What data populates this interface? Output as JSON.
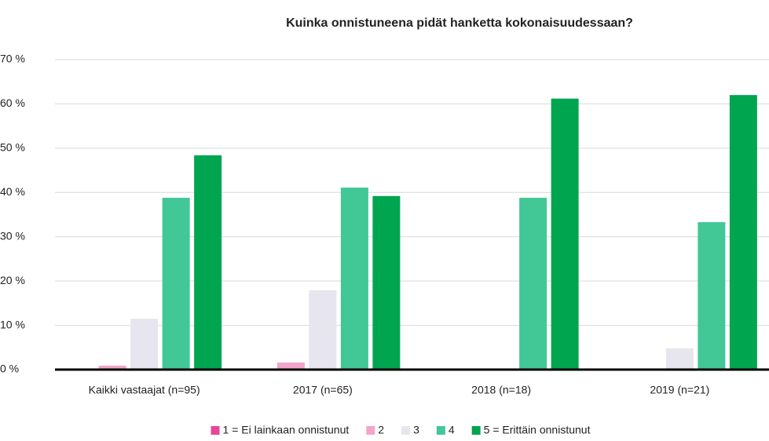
{
  "chart_data": {
    "type": "bar",
    "title": "Kuinka onnistuneena pidät hanketta kokonaisuudessaan?",
    "categories": [
      "Kaikki vastaajat (n=95)",
      "2017 (n=65)",
      "2018 (n=18)",
      "2019 (n=21)"
    ],
    "series": [
      {
        "name": "1 = Ei lainkaan onnistunut",
        "color": "#e6479a",
        "values": [
          0,
          0,
          0,
          0
        ]
      },
      {
        "name": "2",
        "color": "#f3a5cd",
        "values": [
          0.9,
          1.6,
          0,
          0
        ]
      },
      {
        "name": "3",
        "color": "#e7e5ee",
        "values": [
          11.5,
          17.9,
          0,
          4.8
        ]
      },
      {
        "name": "4",
        "color": "#42c797",
        "values": [
          38.8,
          41.1,
          38.8,
          33.3
        ]
      },
      {
        "name": "5 = Erittäin onnistunut",
        "color": "#00a54f",
        "values": [
          48.4,
          39.2,
          61.2,
          62.0
        ]
      }
    ],
    "ylim": [
      0,
      70
    ],
    "yticks": [
      {
        "value": 0,
        "label": "0 %"
      },
      {
        "value": 10,
        "label": "10 %"
      },
      {
        "value": 20,
        "label": "20 %"
      },
      {
        "value": 30,
        "label": "30 %"
      },
      {
        "value": 40,
        "label": "40 %"
      },
      {
        "value": 50,
        "label": "50 %"
      },
      {
        "value": 60,
        "label": "60 %"
      },
      {
        "value": 70,
        "label": "70 %"
      }
    ],
    "grid": true,
    "legend": "bottom"
  }
}
